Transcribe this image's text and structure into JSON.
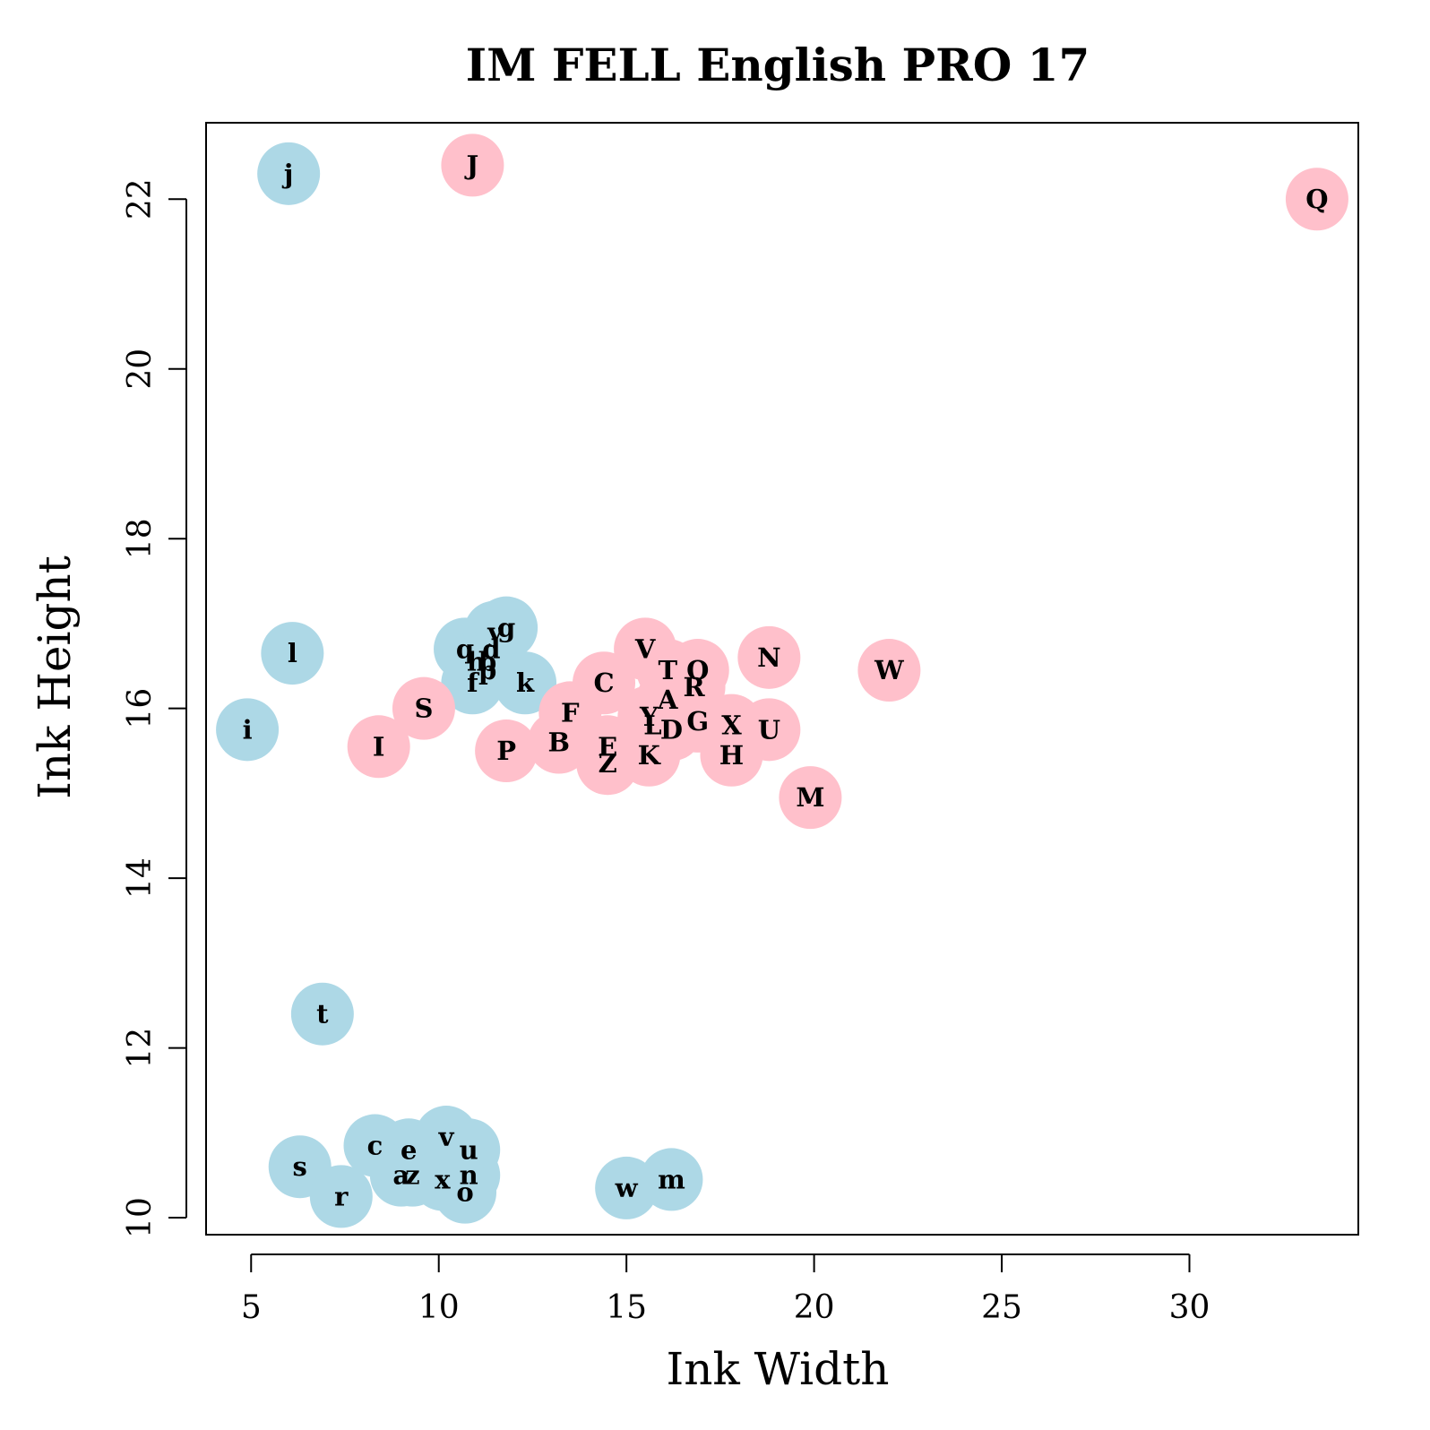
{
  "chart_data": {
    "type": "scatter",
    "title": "IM FELL English PRO 17",
    "xlabel": "Ink Width",
    "ylabel": "Ink Height",
    "xlim": [
      3.8,
      34.5
    ],
    "ylim": [
      9.8,
      22.9
    ],
    "xticks": [
      5,
      10,
      15,
      20,
      25,
      30
    ],
    "yticks": [
      10,
      12,
      14,
      16,
      18,
      20,
      22
    ],
    "grid": false,
    "colors": {
      "uppercase": "#ffc0cb",
      "lowercase": "#add8e6",
      "text": "#000000",
      "axis": "#000000"
    },
    "points": [
      {
        "label": "j",
        "x": 6.0,
        "y": 22.3,
        "group": "lowercase"
      },
      {
        "label": "J",
        "x": 10.9,
        "y": 22.4,
        "group": "uppercase"
      },
      {
        "label": "Q",
        "x": 33.4,
        "y": 22.0,
        "group": "uppercase"
      },
      {
        "label": "l",
        "x": 6.1,
        "y": 16.65,
        "group": "lowercase"
      },
      {
        "label": "i",
        "x": 4.9,
        "y": 15.75,
        "group": "lowercase"
      },
      {
        "label": "q",
        "x": 10.7,
        "y": 16.7,
        "group": "lowercase"
      },
      {
        "label": "h",
        "x": 11.0,
        "y": 16.55,
        "group": "lowercase"
      },
      {
        "label": "b",
        "x": 11.3,
        "y": 16.55,
        "group": "lowercase"
      },
      {
        "label": "d",
        "x": 11.4,
        "y": 16.7,
        "group": "lowercase"
      },
      {
        "label": "p",
        "x": 11.3,
        "y": 16.45,
        "group": "lowercase"
      },
      {
        "label": "y",
        "x": 11.5,
        "y": 16.9,
        "group": "lowercase"
      },
      {
        "label": "f",
        "x": 10.9,
        "y": 16.3,
        "group": "lowercase"
      },
      {
        "label": "g",
        "x": 11.8,
        "y": 16.95,
        "group": "lowercase"
      },
      {
        "label": "k",
        "x": 12.3,
        "y": 16.3,
        "group": "lowercase"
      },
      {
        "label": "S",
        "x": 9.6,
        "y": 16.0,
        "group": "uppercase"
      },
      {
        "label": "I",
        "x": 8.4,
        "y": 15.55,
        "group": "uppercase"
      },
      {
        "label": "P",
        "x": 11.8,
        "y": 15.5,
        "group": "uppercase"
      },
      {
        "label": "B",
        "x": 13.2,
        "y": 15.6,
        "group": "uppercase"
      },
      {
        "label": "F",
        "x": 13.5,
        "y": 15.95,
        "group": "uppercase"
      },
      {
        "label": "C",
        "x": 14.4,
        "y": 16.3,
        "group": "uppercase"
      },
      {
        "label": "E",
        "x": 14.5,
        "y": 15.55,
        "group": "uppercase"
      },
      {
        "label": "Z",
        "x": 14.5,
        "y": 15.35,
        "group": "uppercase"
      },
      {
        "label": "V",
        "x": 15.5,
        "y": 16.7,
        "group": "uppercase"
      },
      {
        "label": "T",
        "x": 16.1,
        "y": 16.45,
        "group": "uppercase"
      },
      {
        "label": "O",
        "x": 16.9,
        "y": 16.45,
        "group": "uppercase"
      },
      {
        "label": "A",
        "x": 16.1,
        "y": 16.1,
        "group": "uppercase"
      },
      {
        "label": "R",
        "x": 16.8,
        "y": 16.25,
        "group": "uppercase"
      },
      {
        "label": "Y",
        "x": 15.6,
        "y": 15.9,
        "group": "uppercase"
      },
      {
        "label": "L",
        "x": 15.7,
        "y": 15.8,
        "group": "uppercase"
      },
      {
        "label": "D",
        "x": 16.2,
        "y": 15.75,
        "group": "uppercase"
      },
      {
        "label": "G",
        "x": 16.9,
        "y": 15.85,
        "group": "uppercase"
      },
      {
        "label": "K",
        "x": 15.6,
        "y": 15.45,
        "group": "uppercase"
      },
      {
        "label": "X",
        "x": 17.8,
        "y": 15.8,
        "group": "uppercase"
      },
      {
        "label": "H",
        "x": 17.8,
        "y": 15.45,
        "group": "uppercase"
      },
      {
        "label": "U",
        "x": 18.8,
        "y": 15.75,
        "group": "uppercase"
      },
      {
        "label": "N",
        "x": 18.8,
        "y": 16.6,
        "group": "uppercase"
      },
      {
        "label": "W",
        "x": 22.0,
        "y": 16.45,
        "group": "uppercase"
      },
      {
        "label": "M",
        "x": 19.9,
        "y": 14.95,
        "group": "uppercase"
      },
      {
        "label": "t",
        "x": 6.9,
        "y": 12.4,
        "group": "lowercase"
      },
      {
        "label": "c",
        "x": 8.3,
        "y": 10.85,
        "group": "lowercase"
      },
      {
        "label": "e",
        "x": 9.2,
        "y": 10.8,
        "group": "lowercase"
      },
      {
        "label": "v",
        "x": 10.2,
        "y": 10.95,
        "group": "lowercase"
      },
      {
        "label": "u",
        "x": 10.8,
        "y": 10.8,
        "group": "lowercase"
      },
      {
        "label": "s",
        "x": 6.3,
        "y": 10.6,
        "group": "lowercase"
      },
      {
        "label": "r",
        "x": 7.4,
        "y": 10.25,
        "group": "lowercase"
      },
      {
        "label": "a",
        "x": 9.0,
        "y": 10.5,
        "group": "lowercase"
      },
      {
        "label": "z",
        "x": 9.3,
        "y": 10.5,
        "group": "lowercase"
      },
      {
        "label": "x",
        "x": 10.1,
        "y": 10.45,
        "group": "lowercase"
      },
      {
        "label": "n",
        "x": 10.8,
        "y": 10.5,
        "group": "lowercase"
      },
      {
        "label": "o",
        "x": 10.7,
        "y": 10.3,
        "group": "lowercase"
      },
      {
        "label": "w",
        "x": 15.0,
        "y": 10.35,
        "group": "lowercase"
      },
      {
        "label": "m",
        "x": 16.2,
        "y": 10.45,
        "group": "lowercase"
      }
    ]
  }
}
